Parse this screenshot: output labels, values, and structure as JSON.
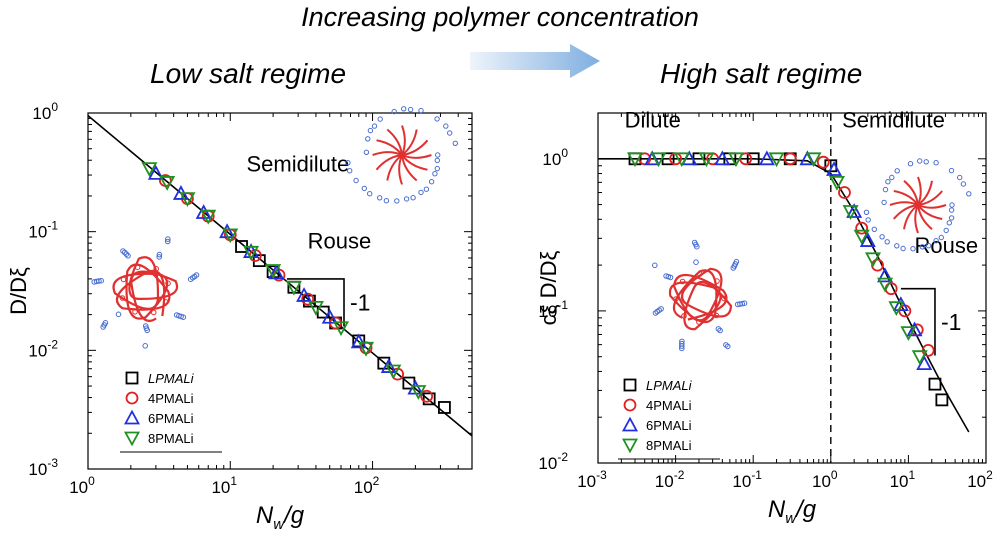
{
  "header": {
    "title": "Increasing polymer concentration",
    "arrow_icon": "right-arrow-icon"
  },
  "colors": {
    "axis": "#000000",
    "polymer": "#e03030",
    "counterion": "#4a6fd0",
    "arrow_start": "#eef4fb",
    "arrow_end": "#7faee0"
  },
  "chart_data": [
    {
      "type": "scatter",
      "title": "Low salt regime",
      "xlabel": "N_w/g",
      "ylabel": "D/D_ξ",
      "xscale": "log",
      "yscale": "log",
      "xlim": [
        1,
        500
      ],
      "ylim": [
        0.001,
        1
      ],
      "x_ticks": [
        {
          "value": 1,
          "label": "10",
          "exp": "0"
        },
        {
          "value": 10,
          "label": "10",
          "exp": "1"
        },
        {
          "value": 100,
          "label": "10",
          "exp": "2"
        }
      ],
      "y_ticks": [
        {
          "value": 0.001,
          "label": "10",
          "exp": "-3"
        },
        {
          "value": 0.01,
          "label": "10",
          "exp": "-2"
        },
        {
          "value": 0.1,
          "label": "10",
          "exp": "-1"
        },
        {
          "value": 1,
          "label": "10",
          "exp": "0"
        }
      ],
      "fit_line": {
        "x": [
          1,
          500
        ],
        "y": [
          0.95,
          0.0019
        ]
      },
      "slope_triangle": {
        "x0": 25,
        "x1": 63,
        "y_top": 0.04,
        "label": "-1"
      },
      "annotations": [
        {
          "text": "Rouse",
          "x": 35,
          "y": 0.072
        },
        {
          "text": "Semidilute",
          "x": 13,
          "y": 0.32
        }
      ],
      "legend": {
        "position": "bottom-left"
      },
      "series": [
        {
          "name": "LPMALi",
          "marker": "square",
          "color": "#000000",
          "x": [
            12,
            16,
            20,
            28,
            36,
            45,
            55,
            80,
            120,
            180,
            250,
            320
          ],
          "y": [
            0.075,
            0.057,
            0.046,
            0.034,
            0.026,
            0.021,
            0.017,
            0.012,
            0.0078,
            0.0053,
            0.0039,
            0.0033
          ]
        },
        {
          "name": "4PMALi",
          "marker": "circle",
          "color": "#e02020",
          "x": [
            3.5,
            5,
            7,
            10,
            15,
            22,
            35,
            55,
            90,
            150,
            240
          ],
          "y": [
            0.27,
            0.19,
            0.135,
            0.094,
            0.063,
            0.043,
            0.027,
            0.017,
            0.0105,
            0.0063,
            0.0041
          ]
        },
        {
          "name": "6PMALi",
          "marker": "triangle-up",
          "color": "#2030e0",
          "x": [
            3,
            4.5,
            6.5,
            9.5,
            14,
            21,
            33,
            50,
            80,
            130,
            200
          ],
          "y": [
            0.31,
            0.21,
            0.145,
            0.1,
            0.068,
            0.045,
            0.029,
            0.019,
            0.0118,
            0.0073,
            0.0048
          ]
        },
        {
          "name": "8PMALi",
          "marker": "triangle-down",
          "color": "#209020",
          "x": [
            2.7,
            3.6,
            5,
            7,
            10,
            14,
            20,
            28,
            40,
            60,
            90,
            140,
            210
          ],
          "y": [
            0.34,
            0.26,
            0.19,
            0.135,
            0.094,
            0.067,
            0.047,
            0.034,
            0.023,
            0.0155,
            0.0104,
            0.0067,
            0.0045
          ]
        }
      ]
    },
    {
      "type": "scatter",
      "title": "High salt regime",
      "xlabel": "N_w/g",
      "ylabel": "c_ξ D/D_ξ",
      "xscale": "log",
      "yscale": "log",
      "xlim": [
        0.001,
        100
      ],
      "ylim": [
        0.01,
        2
      ],
      "x_ticks": [
        {
          "value": 0.001,
          "label": "10",
          "exp": "-3"
        },
        {
          "value": 0.01,
          "label": "10",
          "exp": "-2"
        },
        {
          "value": 0.1,
          "label": "10",
          "exp": "-1"
        },
        {
          "value": 1,
          "label": "10",
          "exp": "0"
        },
        {
          "value": 10,
          "label": "10",
          "exp": "1"
        },
        {
          "value": 100,
          "label": "10",
          "exp": "2"
        }
      ],
      "y_ticks": [
        {
          "value": 0.01,
          "label": "10",
          "exp": "-2"
        },
        {
          "value": 0.1,
          "label": "10",
          "exp": "-1"
        },
        {
          "value": 1,
          "label": "10",
          "exp": "0"
        }
      ],
      "fit_curve": {
        "x": [
          0.001,
          0.1,
          0.5,
          1,
          2,
          4,
          8,
          16,
          32,
          60
        ],
        "y": [
          1,
          1,
          0.97,
          0.8,
          0.45,
          0.23,
          0.11,
          0.055,
          0.028,
          0.016
        ]
      },
      "dashed_x": 1,
      "slope_triangle": {
        "x0": 8,
        "x1": 22,
        "y_top": 0.14,
        "label": "-1"
      },
      "annotations": [
        {
          "text": "Dilute",
          "x": 0.0022,
          "y": 1.6
        },
        {
          "text": "Semidilute",
          "x": 1.4,
          "y": 1.6
        },
        {
          "text": "Rouse",
          "x": 12,
          "y": 0.24
        }
      ],
      "legend": {
        "position": "bottom-left"
      },
      "series": [
        {
          "name": "LPMALi",
          "marker": "square",
          "color": "#000000",
          "x": [
            0.003,
            0.008,
            0.02,
            0.05,
            0.1,
            0.3,
            1,
            22,
            27
          ],
          "y": [
            1,
            1,
            1,
            1,
            1,
            1,
            0.9,
            0.033,
            0.026
          ]
        },
        {
          "name": "4PMALi",
          "marker": "circle",
          "color": "#e02020",
          "x": [
            0.004,
            0.01,
            0.03,
            0.08,
            0.3,
            0.8,
            1.5,
            2.5,
            4,
            6,
            9,
            13,
            18
          ],
          "y": [
            1,
            1,
            1,
            1,
            1,
            0.95,
            0.6,
            0.35,
            0.2,
            0.14,
            0.1,
            0.075,
            0.055
          ]
        },
        {
          "name": "6PMALi",
          "marker": "triangle-up",
          "color": "#2030e0",
          "x": [
            0.005,
            0.015,
            0.04,
            0.15,
            0.5,
            1.1,
            2,
            3,
            5,
            8,
            12,
            16
          ],
          "y": [
            1,
            1,
            1,
            1,
            1,
            0.85,
            0.45,
            0.29,
            0.17,
            0.11,
            0.075,
            0.045
          ]
        },
        {
          "name": "8PMALi",
          "marker": "triangle-down",
          "color": "#209020",
          "x": [
            0.003,
            0.006,
            0.012,
            0.025,
            0.06,
            0.2,
            0.6,
            1.2,
            1.8,
            2.5,
            3.5,
            5,
            7,
            10,
            14
          ],
          "y": [
            1,
            1,
            1,
            1,
            1,
            1,
            1,
            0.7,
            0.45,
            0.31,
            0.22,
            0.15,
            0.105,
            0.072,
            0.05
          ]
        }
      ]
    }
  ]
}
